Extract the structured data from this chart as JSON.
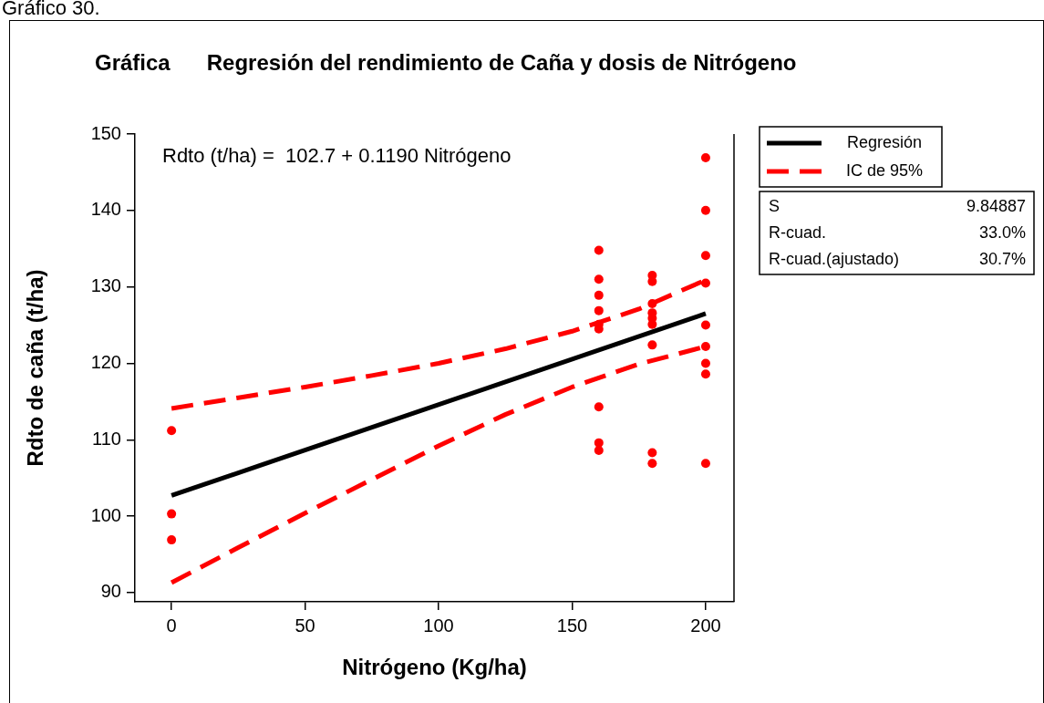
{
  "chart_data": {
    "type": "scatter",
    "title": "Gráfica      Regresión del rendimiento de Caña y dosis de Nitrógeno",
    "xlabel": "Nitrógeno (Kg/ha)",
    "ylabel": "Rdto de caña (t/ha)",
    "annotations": [
      "Gráfico 30.",
      "Rdto (t/ha) =  102.7 + 0.1190 Nitrógeno",
      "S",
      "9.84887",
      "R-cuad.",
      "33.0%",
      "R-cuad.(ajustado)",
      "30.7%"
    ],
    "xlim": [
      -13.7,
      210.6
    ],
    "xticks": [
      0,
      50,
      100,
      150,
      200
    ],
    "ylim": [
      88.8,
      150
    ],
    "yticks": [
      90,
      100,
      110,
      120,
      130,
      140,
      150
    ],
    "grid": false,
    "legend": "top right",
    "series": [
      {
        "type": "scatter",
        "color": "#ff0000",
        "marker": "circle",
        "x": [
          0,
          0,
          0,
          160,
          160,
          160,
          160,
          160,
          160,
          160,
          160,
          160,
          180,
          180,
          180,
          180,
          180,
          180,
          180,
          180,
          180,
          200,
          200,
          200,
          200,
          200,
          200,
          200,
          200,
          200
        ],
        "values": [
          111.2,
          100.3,
          96.9,
          134.8,
          131.0,
          128.9,
          126.9,
          125.1,
          124.5,
          114.3,
          109.6,
          108.6,
          131.5,
          130.7,
          127.8,
          126.6,
          125.9,
          125.1,
          122.4,
          108.3,
          106.9,
          146.9,
          140.0,
          134.1,
          130.5,
          125.0,
          122.2,
          120.0,
          118.6,
          106.9
        ]
      },
      {
        "type": "line",
        "name": "Regresión",
        "color": "#000000",
        "marker": "none",
        "line_style": "solid",
        "x": [
          0,
          200
        ],
        "values": [
          102.7,
          126.5
        ]
      },
      {
        "type": "line",
        "name": "IC de 95%",
        "color": "#ff0000",
        "marker": "none",
        "line_style": "dashed",
        "x": [
          0,
          25,
          50,
          75,
          100,
          125,
          150,
          175,
          200
        ],
        "values": [
          114.1,
          115.5,
          116.9,
          118.4,
          120.0,
          121.9,
          124.2,
          127.1,
          130.9
        ]
      },
      {
        "type": "line",
        "color": "#ff0000",
        "marker": "none",
        "line_style": "dashed",
        "x": [
          0,
          25,
          50,
          75,
          100,
          125,
          150,
          175,
          200
        ],
        "values": [
          91.3,
          95.9,
          100.4,
          104.8,
          109.2,
          113.3,
          116.9,
          119.9,
          122.2
        ]
      }
    ]
  }
}
